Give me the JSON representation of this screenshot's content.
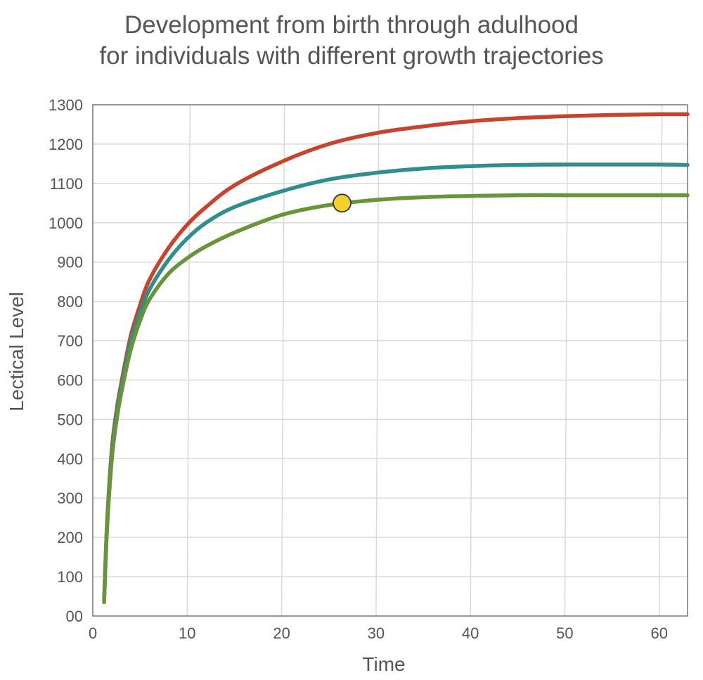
{
  "chart_data": {
    "type": "line",
    "title_lines": [
      "Development from birth through adulhood",
      "for individuals with different growth trajectories"
    ],
    "xlabel": "Time",
    "ylabel": "Lectical Level",
    "xlim": [
      0,
      63
    ],
    "ylim": [
      0,
      1300
    ],
    "x_ticks": [
      "0",
      "10",
      "20",
      "30",
      "40",
      "50",
      "60"
    ],
    "y_ticks": [
      "00",
      "100",
      "200",
      "300",
      "400",
      "500",
      "600",
      "700",
      "800",
      "900",
      "1000",
      "1100",
      "1200",
      "1300"
    ],
    "grid": true,
    "legend": "none",
    "series": [
      {
        "color": "#c8432b",
        "x": [
          1.2,
          1.5,
          2,
          2.5,
          3,
          4,
          5,
          6,
          8,
          10,
          12,
          15,
          20,
          25,
          30,
          35,
          40,
          45,
          50,
          55,
          60,
          63
        ],
        "y": [
          40,
          230,
          420,
          520,
          590,
          710,
          790,
          855,
          935,
          995,
          1040,
          1095,
          1155,
          1200,
          1228,
          1245,
          1258,
          1266,
          1271,
          1274,
          1276,
          1276
        ]
      },
      {
        "color": "#2e8f8c",
        "x": [
          1.2,
          1.5,
          2,
          2.5,
          3,
          4,
          5,
          6,
          8,
          10,
          12,
          15,
          20,
          25,
          30,
          35,
          40,
          45,
          50,
          55,
          60,
          63
        ],
        "y": [
          40,
          225,
          410,
          510,
          580,
          695,
          770,
          830,
          905,
          960,
          1000,
          1040,
          1080,
          1110,
          1127,
          1138,
          1144,
          1147,
          1148,
          1148,
          1148,
          1147
        ]
      },
      {
        "color": "#6a9438",
        "x": [
          1.2,
          1.5,
          2,
          2.5,
          3,
          4,
          5,
          6,
          8,
          10,
          12,
          15,
          20,
          25,
          30,
          35,
          40,
          45,
          50,
          55,
          60,
          63
        ],
        "y": [
          35,
          215,
          395,
          495,
          565,
          675,
          750,
          805,
          870,
          910,
          940,
          975,
          1020,
          1045,
          1058,
          1065,
          1068,
          1070,
          1070,
          1070,
          1070,
          1070
        ]
      }
    ],
    "markers": [
      {
        "x": 26.4,
        "y": 1050,
        "color": "#f2d12a"
      }
    ]
  }
}
